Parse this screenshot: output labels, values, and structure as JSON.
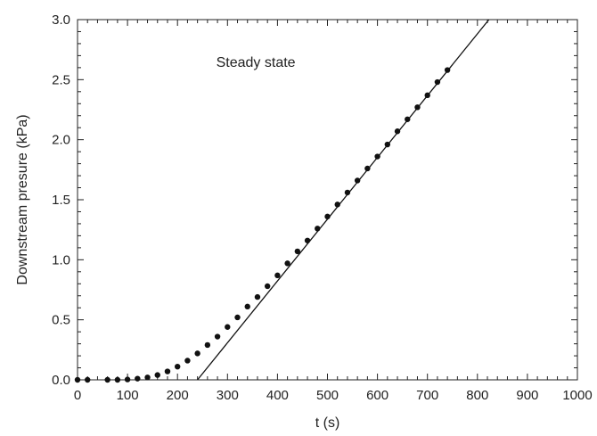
{
  "chart_data": {
    "type": "scatter",
    "title": "",
    "xlabel": "t (s)",
    "ylabel": "Downstream presure (kPa)",
    "xlim": [
      0,
      1000
    ],
    "ylim": [
      0,
      3.0
    ],
    "x_ticks": [
      0,
      100,
      200,
      300,
      400,
      500,
      600,
      700,
      800,
      900,
      1000
    ],
    "x_tick_labels": [
      "0",
      "100",
      "200",
      "300",
      "400",
      "500",
      "600",
      "700",
      "800",
      "900",
      "1000"
    ],
    "y_ticks": [
      0,
      0.5,
      1.0,
      1.5,
      2.0,
      2.5,
      3.0
    ],
    "y_tick_labels": [
      "0.0",
      "0.5",
      "1.0",
      "1.5",
      "2.0",
      "2.5",
      "3.0"
    ],
    "grid": false,
    "annotations": [
      {
        "text": "Steady state",
        "x": 420,
        "y": 2.65
      }
    ],
    "series": [
      {
        "kind": "points",
        "x": [
          0,
          20,
          60,
          80,
          100,
          120,
          140,
          160,
          180,
          200,
          220,
          240,
          260,
          280,
          300,
          320,
          340,
          360,
          380,
          400,
          420,
          440,
          460,
          480,
          500,
          520,
          540,
          560,
          580,
          600,
          620,
          640,
          660,
          680,
          700,
          720,
          740
        ],
        "y": [
          0.0,
          0.0,
          0.0,
          0.0,
          0.003,
          0.01,
          0.02,
          0.04,
          0.07,
          0.11,
          0.16,
          0.22,
          0.29,
          0.36,
          0.44,
          0.52,
          0.61,
          0.69,
          0.78,
          0.87,
          0.97,
          1.07,
          1.16,
          1.26,
          1.36,
          1.46,
          1.56,
          1.66,
          1.76,
          1.86,
          1.96,
          2.07,
          2.17,
          2.27,
          2.37,
          2.48,
          2.58
        ]
      },
      {
        "kind": "line",
        "x": [
          240,
          823
        ],
        "y": [
          0.0,
          3.0
        ]
      }
    ]
  }
}
